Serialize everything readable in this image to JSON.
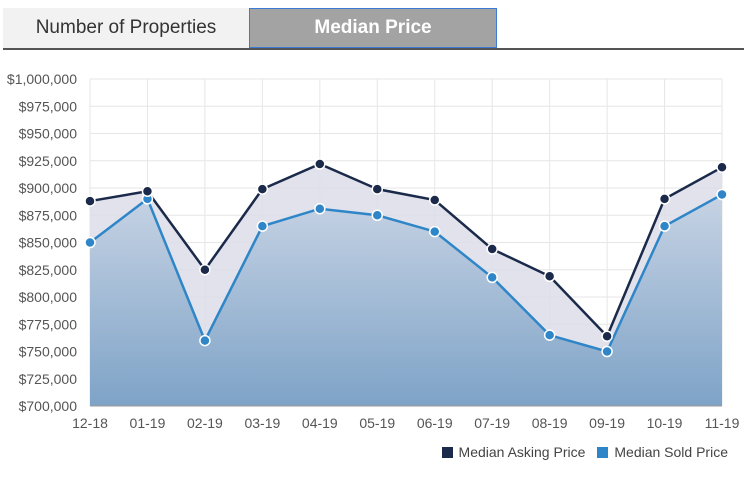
{
  "tabs": [
    {
      "label": "Number of Properties",
      "active": false
    },
    {
      "label": "Median Price",
      "active": true
    }
  ],
  "colors": {
    "asking": "#1b2a4a",
    "sold": "#2e86c8",
    "band_fill": "#dcdde8",
    "area_top": "#c7d3e4",
    "area_bottom": "#7ea3c7",
    "grid": "#e6e6e6"
  },
  "chart_data": {
    "type": "line",
    "categories": [
      "12-18",
      "01-19",
      "02-19",
      "03-19",
      "04-19",
      "05-19",
      "06-19",
      "07-19",
      "08-19",
      "09-19",
      "10-19",
      "11-19"
    ],
    "series": [
      {
        "name": "Median Asking Price",
        "values": [
          888000,
          897000,
          825000,
          899000,
          922000,
          899000,
          889000,
          844000,
          819000,
          764000,
          890000,
          919000
        ]
      },
      {
        "name": "Median Sold Price",
        "values": [
          850000,
          890000,
          760000,
          865000,
          881000,
          875000,
          860000,
          818000,
          765000,
          750000,
          865000,
          894000
        ]
      }
    ],
    "ylim": [
      700000,
      1000000
    ],
    "yticks": [
      "$700,000",
      "$725,000",
      "$750,000",
      "$775,000",
      "$800,000",
      "$825,000",
      "$850,000",
      "$875,000",
      "$900,000",
      "$925,000",
      "$950,000",
      "$975,000",
      "$1,000,000"
    ],
    "grid": true,
    "legend_position": "bottom-right"
  }
}
